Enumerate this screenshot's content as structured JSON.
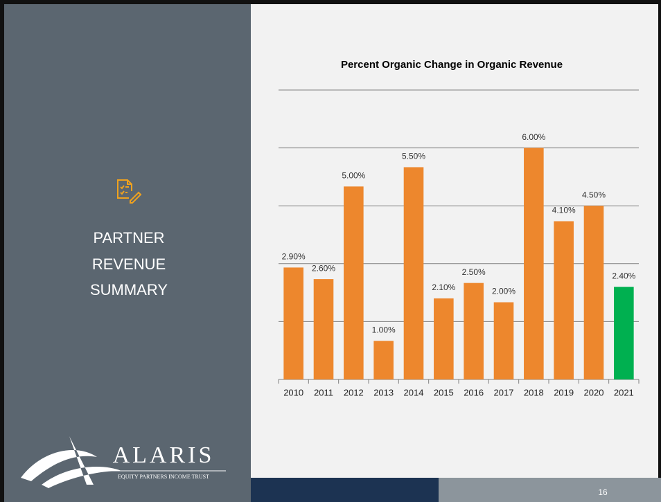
{
  "slide": {
    "title_lines": [
      "PARTNER",
      "REVENUE",
      "SUMMARY"
    ],
    "logo_name": "ALARIS",
    "logo_tagline": "EQUITY PARTNERS INCOME TRUST",
    "page_number": "16"
  },
  "chart_data": {
    "type": "bar",
    "title": "Percent Organic Change in Organic Revenue",
    "categories": [
      "2010",
      "2011",
      "2012",
      "2013",
      "2014",
      "2015",
      "2016",
      "2017",
      "2018",
      "2019",
      "2020",
      "2021"
    ],
    "values": [
      2.9,
      2.6,
      5.0,
      1.0,
      5.5,
      2.1,
      2.5,
      2.0,
      6.0,
      4.1,
      4.5,
      2.4
    ],
    "value_labels": [
      "2.90%",
      "2.60%",
      "5.00%",
      "1.00%",
      "5.50%",
      "2.10%",
      "2.50%",
      "2.00%",
      "6.00%",
      "4.10%",
      "4.50%",
      "2.40%"
    ],
    "colors": [
      "#ed872d",
      "#ed872d",
      "#ed872d",
      "#ed872d",
      "#ed872d",
      "#ed872d",
      "#ed872d",
      "#ed872d",
      "#ed872d",
      "#ed872d",
      "#ed872d",
      "#00b050"
    ],
    "ylim": [
      0,
      7.5
    ],
    "yticks": [
      0,
      1.5,
      3,
      4.5,
      6,
      7.5
    ],
    "grid": true
  }
}
